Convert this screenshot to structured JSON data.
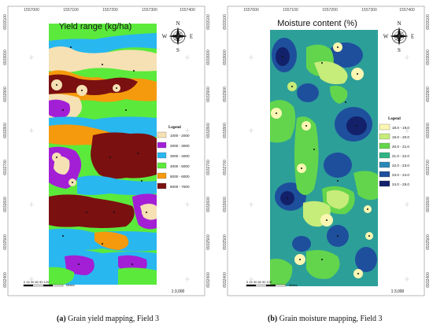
{
  "panels": [
    {
      "title": "Yield range (kg/ha)",
      "caption_label": "(a)",
      "caption_text": " Grain yield mapping, Field 3",
      "x_ticks": [
        "1557000",
        "1557100",
        "1557200",
        "1557300",
        "1557400"
      ],
      "y_ticks": [
        "6933100",
        "6933000",
        "6932900",
        "6932800",
        "6932700",
        "6932600",
        "6932500",
        "6932400"
      ],
      "legend_title": "Legend",
      "legend": [
        {
          "label": "1000 - 2000",
          "color": "#f6e1b4"
        },
        {
          "label": "2000 - 3000",
          "color": "#a21fd6"
        },
        {
          "label": "3000 - 4000",
          "color": "#29b7f0"
        },
        {
          "label": "4000 - 5000",
          "color": "#5bea3b"
        },
        {
          "label": "5000 - 6000",
          "color": "#f59a0c"
        },
        {
          "label": "6000 - 7000",
          "color": "#7a1010"
        }
      ],
      "scale_numbers": "0  15  30      60       90      120",
      "scale_unit": "Meters",
      "ratio": "1:3,000",
      "compass": {
        "n": "N",
        "s": "S",
        "e": "E",
        "w": "W"
      }
    },
    {
      "title": "Moisture content (%)",
      "caption_label": "(b)",
      "caption_text": " Grain moisture mapping, Field 3",
      "x_ticks": [
        "1557000",
        "1557100",
        "1557200",
        "1557300",
        "1557400"
      ],
      "y_ticks": [
        "6933100",
        "6933000",
        "6932900",
        "6932800",
        "6932700",
        "6932600",
        "6932500",
        "6932400"
      ],
      "legend_title": "Legend",
      "legend": [
        {
          "label": "18.0 - 19.0",
          "color": "#fbf6b2"
        },
        {
          "label": "19.0 - 20.0",
          "color": "#c6ec7a"
        },
        {
          "label": "20.0 - 21.0",
          "color": "#63d54c"
        },
        {
          "label": "21.0 - 22.0",
          "color": "#2fb382"
        },
        {
          "label": "22.0 - 23.0",
          "color": "#2a88b6"
        },
        {
          "label": "23.0 - 24.0",
          "color": "#1e4f9d"
        },
        {
          "label": "24.0 - 25.0",
          "color": "#13216a"
        }
      ],
      "scale_numbers": "0  15  30      60       90      120",
      "scale_unit": "Meters",
      "ratio": "1:3,000",
      "compass": {
        "n": "N",
        "s": "S",
        "e": "E",
        "w": "W"
      }
    }
  ]
}
